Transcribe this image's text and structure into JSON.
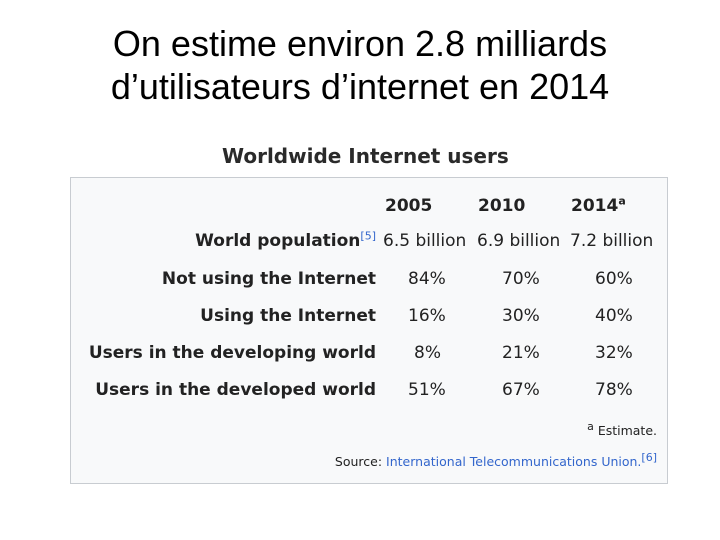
{
  "slide": {
    "title_line1": "On estime environ 2.8 milliards",
    "title_line2": "d’utilisateurs d’internet en 2014"
  },
  "table": {
    "caption": "Worldwide Internet users",
    "columns": [
      "2005",
      "2010",
      "2014"
    ],
    "column_footnote_marker": "a",
    "rows": [
      {
        "label": "World population",
        "ref": "[5]",
        "values": [
          "6.5 billion",
          "6.9 billion",
          "7.2 billion"
        ]
      },
      {
        "label": "Not using the Internet",
        "values": [
          "84%",
          "70%",
          "60%"
        ]
      },
      {
        "label": "Using the Internet",
        "values": [
          "16%",
          "30%",
          "40%"
        ]
      },
      {
        "label": "Users in the developing world",
        "values": [
          "8%",
          "21%",
          "32%"
        ]
      },
      {
        "label": "Users in the developed world",
        "values": [
          "51%",
          "67%",
          "78%"
        ]
      }
    ],
    "footnote_marker": "a",
    "footnote_text": "Estimate.",
    "source_label": "Source:",
    "source_link": "International Telecommunications Union.",
    "source_ref": "[6]"
  }
}
